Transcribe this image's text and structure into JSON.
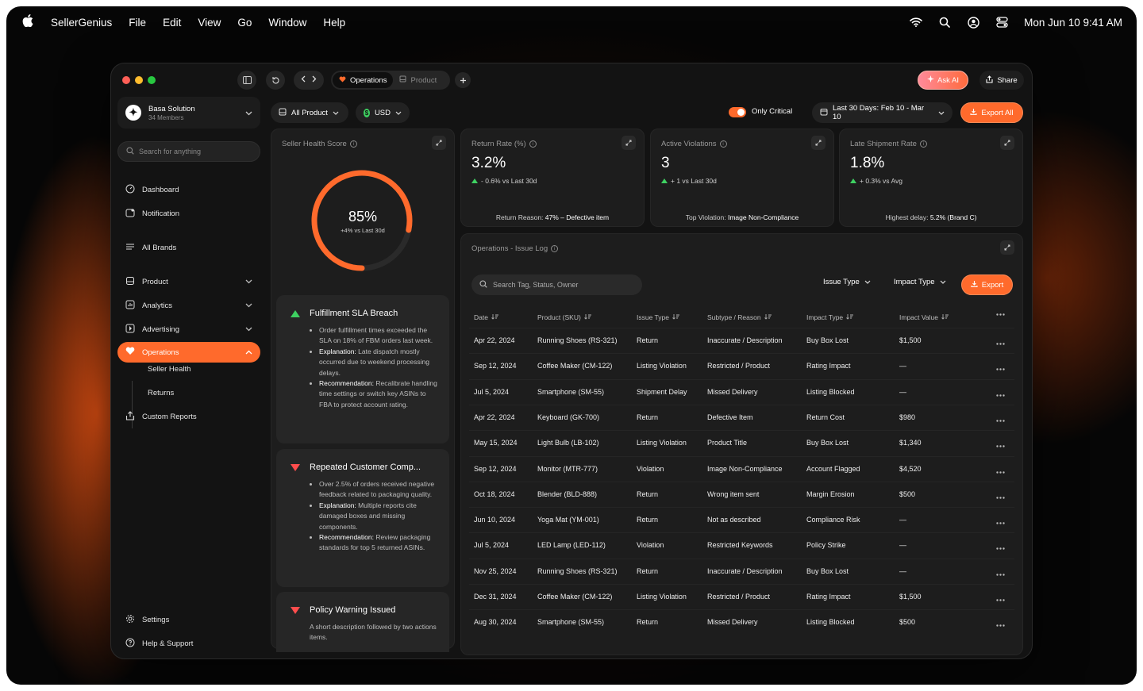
{
  "menubar": {
    "app_name": "SellerGenius",
    "menus": [
      "File",
      "Edit",
      "View",
      "Go",
      "Window",
      "Help"
    ],
    "clock": "Mon Jun 10  9:41 AM"
  },
  "titlebar": {
    "tabs": [
      "Operations",
      "Product"
    ],
    "ask_ai": "Ask AI",
    "share": "Share"
  },
  "workspace": {
    "name": "Basa Solution",
    "members": "34 Members"
  },
  "sidebar": {
    "search_placeholder": "Search for anything",
    "items": [
      {
        "label": "Dashboard",
        "icon": "dashboard-icon"
      },
      {
        "label": "Notification",
        "icon": "notification-icon"
      },
      {
        "label": "All Brands",
        "icon": "list-icon"
      },
      {
        "label": "Product",
        "icon": "product-icon"
      },
      {
        "label": "Analytics",
        "icon": "analytics-icon"
      },
      {
        "label": "Advertising",
        "icon": "advertising-icon"
      },
      {
        "label": "Operations",
        "icon": "heart-icon"
      }
    ],
    "sub_items": [
      "Seller Health",
      "Returns"
    ],
    "custom_reports": "Custom Reports",
    "settings": "Settings",
    "help": "Help & Support"
  },
  "toolbar": {
    "product_filter": "All Product",
    "currency": "USD",
    "only_critical": "Only Critical",
    "date_range": "Last 30 Days: Feb 10 - Mar 10",
    "export_all": "Export All"
  },
  "health": {
    "title": "Seller Health Score",
    "score": "85%",
    "score_fraction": 0.85,
    "delta": "+4% vs Last 30d"
  },
  "kpis": [
    {
      "title": "Return Rate (%)",
      "value": "3.2%",
      "delta": "- 0.6% vs Last 30d",
      "foot_label": "Return Reason:",
      "foot_value": "47% – Defective item"
    },
    {
      "title": "Active Violations",
      "value": "3",
      "delta": "+ 1 vs Last 30d",
      "foot_label": "Top Violation:",
      "foot_value": "Image Non-Compliance"
    },
    {
      "title": "Late Shipment Rate",
      "value": "1.8%",
      "delta": "+ 0.3% vs Avg",
      "foot_label": "Highest delay:",
      "foot_value": "5.2% (Brand C)"
    }
  ],
  "issues": [
    {
      "title": "Fulfillment SLA Breach",
      "trend": "up",
      "bullets": [
        {
          "lead": "",
          "text": "Order fulfillment times exceeded the SLA on 18% of FBM orders last week."
        },
        {
          "lead": "Explanation:",
          "text": " Late dispatch mostly occurred due to weekend processing delays."
        },
        {
          "lead": "Recommendation:",
          "text": " Recalibrate handling time settings or switch key ASINs to FBA to protect account rating."
        }
      ]
    },
    {
      "title": "Repeated Customer Comp...",
      "trend": "down",
      "bullets": [
        {
          "lead": "",
          "text": "Over 2.5% of orders received negative feedback related to packaging quality."
        },
        {
          "lead": "Explanation:",
          "text": " Multiple reports cite damaged boxes and missing components."
        },
        {
          "lead": "Recommendation:",
          "text": " Review packaging standards for top 5 returned ASINs."
        }
      ]
    },
    {
      "title": "Policy Warning Issued",
      "trend": "down",
      "text": "A short description followed by two actions items."
    }
  ],
  "issue_log": {
    "title": "Operations - Issue Log",
    "search_placeholder": "Search Tag, Status, Owner",
    "filter_issue_type": "Issue Type",
    "filter_impact_type": "Impact Type",
    "export": "Export",
    "columns": [
      "Date",
      "Product (SKU)",
      "Issue Type",
      "Subtype / Reason",
      "Impact Type",
      "Impact Value"
    ],
    "rows": [
      [
        "Apr 22, 2024",
        "Running Shoes (RS-321)",
        "Return",
        "Inaccurate / Description",
        "Buy Box Lost",
        "$1,500"
      ],
      [
        "Sep 12, 2024",
        "Coffee Maker (CM-122)",
        "Listing Violation",
        "Restricted / Product",
        "Rating Impact",
        "—"
      ],
      [
        "Jul 5, 2024",
        "Smartphone (SM-55)",
        "Shipment Delay",
        "Missed Delivery",
        "Listing Blocked",
        "—"
      ],
      [
        "Apr 22, 2024",
        "Keyboard (GK-700)",
        "Return",
        "Defective Item",
        "Return Cost",
        "$980"
      ],
      [
        "May 15, 2024",
        "Light Bulb (LB-102)",
        "Listing Violation",
        "Product Title",
        "Buy Box Lost",
        "$1,340"
      ],
      [
        "Sep 12, 2024",
        "Monitor (MTR-777)",
        "Violation",
        "Image Non-Compliance",
        "Account Flagged",
        "$4,520"
      ],
      [
        "Oct 18, 2024",
        "Blender (BLD-888)",
        "Return",
        "Wrong item sent",
        "Margin Erosion",
        "$500"
      ],
      [
        "Jun 10, 2024",
        "Yoga Mat (YM-001)",
        "Return",
        "Not as described",
        "Compliance Risk",
        "—"
      ],
      [
        "Jul 5, 2024",
        "LED Lamp (LED-112)",
        "Violation",
        "Restricted Keywords",
        "Policy Strike",
        "—"
      ],
      [
        "Nov 25, 2024",
        "Running Shoes (RS-321)",
        "Return",
        "Inaccurate / Description",
        "Buy Box Lost",
        "—"
      ],
      [
        "Dec 31, 2024",
        "Coffee Maker (CM-122)",
        "Listing Violation",
        "Restricted / Product",
        "Rating Impact",
        "$1,500"
      ],
      [
        "Aug 30, 2024",
        "Smartphone (SM-55)",
        "Return",
        "Missed Delivery",
        "Listing Blocked",
        "$500"
      ]
    ]
  },
  "colors": {
    "accent": "#ff6a2c",
    "up": "#3ed161",
    "down": "#ff4d4d",
    "panel": "#1d1d1d"
  }
}
